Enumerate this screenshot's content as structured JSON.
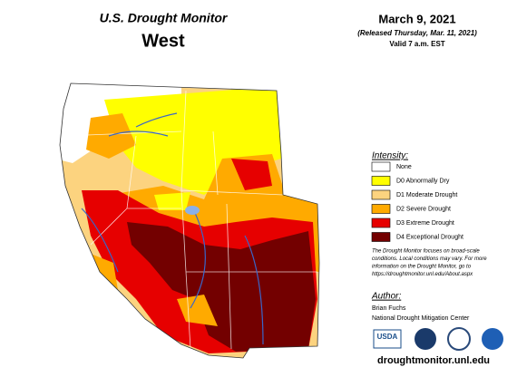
{
  "header": {
    "title": "U.S. Drought Monitor",
    "region": "West",
    "date": "March 9, 2021",
    "released": "(Released Thursday, Mar. 11, 2021)",
    "valid": "Valid 7 a.m. EST"
  },
  "legend": {
    "title": "Intensity:",
    "items": [
      {
        "label": "None",
        "color": "#ffffff"
      },
      {
        "label": "D0 Abnormally Dry",
        "color": "#ffff00"
      },
      {
        "label": "D1 Moderate Drought",
        "color": "#fcd37f"
      },
      {
        "label": "D2 Severe Drought",
        "color": "#ffaa00"
      },
      {
        "label": "D3 Extreme Drought",
        "color": "#e60000"
      },
      {
        "label": "D4 Exceptional Drought",
        "color": "#730000"
      }
    ]
  },
  "note": [
    "The Drought Monitor focuses on broad-scale",
    "conditions. Local conditions may vary. For more",
    "information on the Drought Monitor, go to",
    "https://droughtmonitor.unl.edu/About.aspx"
  ],
  "author": {
    "title": "Author:",
    "name": "Brian Fuchs",
    "org": "National Drought Mitigation Center"
  },
  "logos": [
    "USDA"
  ],
  "url": "droughtmonitor.unl.edu"
}
